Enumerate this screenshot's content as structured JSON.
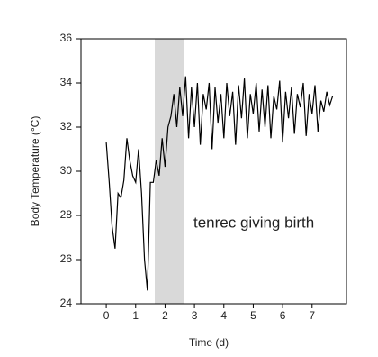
{
  "chart_data": {
    "type": "line",
    "xlabel": "Time (d)",
    "ylabel": "Body Temperature (°C)",
    "annotation": "tenrec giving birth",
    "shaded_span": [
      1.65,
      2.63
    ],
    "shaded_color": "#d9d9d9",
    "x": [
      0,
      0.1,
      0.2,
      0.3,
      0.4,
      0.5,
      0.6,
      0.7,
      0.8,
      0.9,
      1,
      1.1,
      1.2,
      1.3,
      1.4,
      1.5,
      1.6,
      1.7,
      1.8,
      1.9,
      2,
      2.1,
      2.2,
      2.3,
      2.4,
      2.5,
      2.6,
      2.7,
      2.8,
      2.9,
      3,
      3.1,
      3.2,
      3.3,
      3.4,
      3.5,
      3.6,
      3.7,
      3.8,
      3.9,
      4,
      4.1,
      4.2,
      4.3,
      4.4,
      4.5,
      4.6,
      4.7,
      4.8,
      4.9,
      5,
      5.1,
      5.2,
      5.3,
      5.4,
      5.5,
      5.6,
      5.7,
      5.8,
      5.9,
      6,
      6.1,
      6.2,
      6.3,
      6.4,
      6.5,
      6.6,
      6.7,
      6.8,
      6.9,
      7,
      7.1,
      7.2,
      7.3,
      7.4,
      7.5,
      7.6,
      7.7
    ],
    "series": [
      {
        "color": "#000000",
        "values": [
          31.3,
          29.5,
          27.5,
          26.5,
          29.0,
          28.8,
          29.6,
          31.5,
          30.5,
          29.8,
          29.5,
          31.0,
          29.0,
          26.0,
          24.6,
          29.5,
          29.5,
          30.5,
          29.8,
          31.5,
          30.2,
          32.0,
          32.5,
          33.5,
          32.0,
          33.8,
          32.5,
          34.3,
          31.5,
          33.8,
          32.0,
          34.0,
          31.2,
          33.5,
          32.8,
          34.0,
          31.0,
          33.8,
          32.2,
          33.5,
          31.5,
          34.0,
          32.5,
          33.6,
          31.2,
          33.9,
          32.4,
          34.2,
          31.5,
          33.5,
          32.6,
          34.0,
          31.8,
          33.7,
          32.0,
          33.9,
          31.5,
          33.4,
          32.8,
          34.1,
          31.3,
          33.6,
          32.4,
          33.8,
          31.7,
          33.5,
          32.9,
          34.0,
          31.6,
          33.5,
          32.6,
          33.9,
          31.8,
          33.2,
          32.7,
          33.6,
          33.0,
          33.4
        ]
      }
    ],
    "xlim": [
      -0.86,
      8.17
    ],
    "ylim": [
      24,
      36
    ],
    "xticks": [
      0,
      1,
      2,
      3,
      4,
      5,
      6,
      7
    ],
    "yticks": [
      24,
      26,
      28,
      30,
      32,
      34,
      36
    ]
  }
}
